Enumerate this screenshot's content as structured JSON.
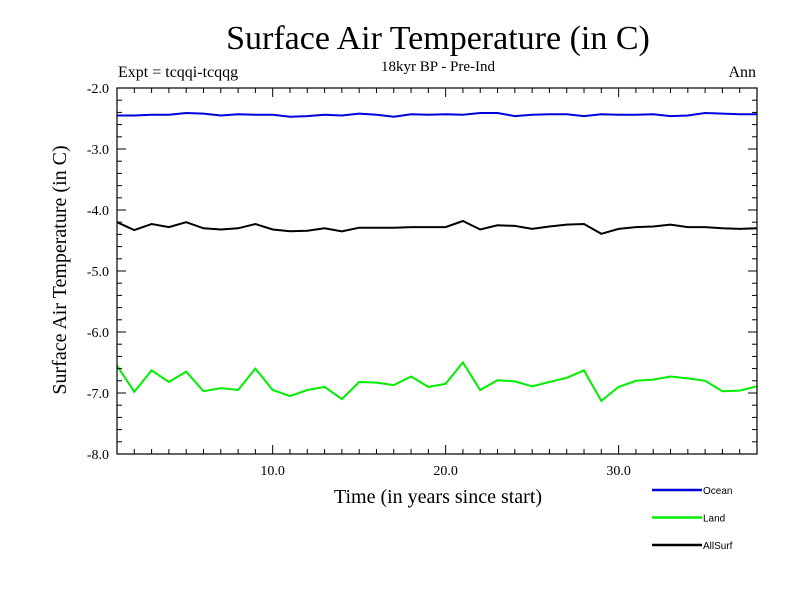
{
  "chart_data": {
    "type": "line",
    "title": "Surface Air Temperature (in C)",
    "subtitle": "18kyr BP - Pre-Ind",
    "experiment_label": "Expt = tcqqi-tcqqg",
    "season_label": "Ann",
    "xlabel": "Time (in years since start)",
    "ylabel": "Surface Air Temperature (in C)",
    "xlim": [
      1,
      38
    ],
    "ylim": [
      -8.0,
      -2.0
    ],
    "x_ticks": [
      10,
      20,
      30
    ],
    "x_tick_labels": [
      "10.0",
      "20.0",
      "30.0"
    ],
    "y_ticks": [
      -2,
      -3,
      -4,
      -5,
      -6,
      -7,
      -8
    ],
    "y_tick_labels": [
      "-2.0",
      "-3.0",
      "-4.0",
      "-5.0",
      "-6.0",
      "-7.0",
      "-8.0"
    ],
    "legend_position": "bottom-right",
    "x": [
      1,
      2,
      3,
      4,
      5,
      6,
      7,
      8,
      9,
      10,
      11,
      12,
      13,
      14,
      15,
      16,
      17,
      18,
      19,
      20,
      21,
      22,
      23,
      24,
      25,
      26,
      27,
      28,
      29,
      30,
      31,
      32,
      33,
      34,
      35,
      36,
      37,
      38
    ],
    "series": [
      {
        "name": "Ocean",
        "color": "#0000dd",
        "values": [
          -2.45,
          -2.45,
          -2.44,
          -2.44,
          -2.41,
          -2.42,
          -2.45,
          -2.43,
          -2.44,
          -2.44,
          -2.47,
          -2.46,
          -2.44,
          -2.45,
          -2.42,
          -2.44,
          -2.47,
          -2.43,
          -2.44,
          -2.43,
          -2.44,
          -2.41,
          -2.41,
          -2.46,
          -2.44,
          -2.43,
          -2.43,
          -2.46,
          -2.43,
          -2.44,
          -2.44,
          -2.43,
          -2.46,
          -2.45,
          -2.41,
          -2.42,
          -2.43,
          -2.43
        ]
      },
      {
        "name": "Land",
        "color": "#00ee00",
        "values": [
          -6.55,
          -6.98,
          -6.63,
          -6.82,
          -6.65,
          -6.97,
          -6.92,
          -6.95,
          -6.6,
          -6.95,
          -7.05,
          -6.95,
          -6.9,
          -7.1,
          -6.82,
          -6.83,
          -6.87,
          -6.73,
          -6.9,
          -6.85,
          -6.5,
          -6.95,
          -6.79,
          -6.81,
          -6.89,
          -6.82,
          -6.75,
          -6.63,
          -7.13,
          -6.9,
          -6.8,
          -6.78,
          -6.73,
          -6.76,
          -6.8,
          -6.97,
          -6.96,
          -6.89
        ]
      },
      {
        "name": "AllSurf",
        "color": "#000000",
        "values": [
          -4.2,
          -4.33,
          -4.23,
          -4.28,
          -4.2,
          -4.3,
          -4.32,
          -4.3,
          -4.23,
          -4.32,
          -4.35,
          -4.34,
          -4.3,
          -4.35,
          -4.29,
          -4.29,
          -4.29,
          -4.28,
          -4.28,
          -4.28,
          -4.18,
          -4.32,
          -4.25,
          -4.26,
          -4.31,
          -4.27,
          -4.24,
          -4.23,
          -4.39,
          -4.31,
          -4.28,
          -4.27,
          -4.24,
          -4.28,
          -4.28,
          -4.3,
          -4.31,
          -4.3
        ]
      }
    ]
  }
}
